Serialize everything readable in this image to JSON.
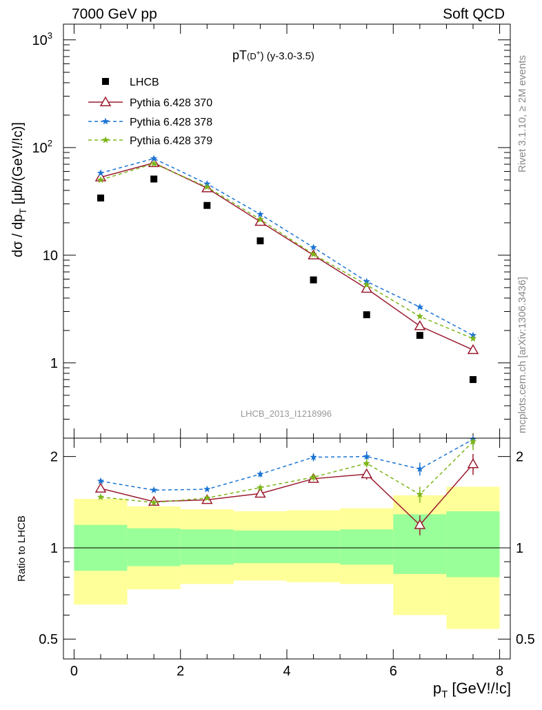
{
  "header": {
    "left": "7000 GeV pp",
    "right": "Soft QCD"
  },
  "side_labels": {
    "rivet": "Rivet 3.1.10, ≥ 2M events",
    "mcplots": "mcplots.cern.ch [arXiv:1306.3436]"
  },
  "chart_data": [
    {
      "type": "scatter",
      "title": "pT(D+) (y-3.0-3.5)",
      "title_main": "pT",
      "title_sub": "(D",
      "title_sup": "+",
      "title_tail": ") (y-3.0-3.5)",
      "ylabel": "dσ / dp_T [μb/(GeV!/!c)]",
      "ylabel_main": "dσ / dp",
      "ylabel_sub": "T",
      "ylabel_tail": " [μb/(GeV!/!c)]",
      "watermark": "LHCB_2013_I1218996",
      "yscale": "log",
      "ylim": [
        0.2,
        1400
      ],
      "xlim": [
        -0.2,
        8.2
      ],
      "yticks": [
        {
          "value": 1,
          "label": "1"
        },
        {
          "value": 10,
          "label": "10"
        },
        {
          "value": 100,
          "label": "10",
          "sup": "2"
        },
        {
          "value": 1000,
          "label": "10",
          "sup": "3"
        }
      ],
      "legend_position": "top-left",
      "x": [
        0.5,
        1.5,
        2.5,
        3.5,
        4.5,
        5.5,
        6.5,
        7.5
      ],
      "series": [
        {
          "name": "LHCB",
          "marker": "square",
          "color": "#000000",
          "values": [
            34,
            51,
            29,
            13.6,
            5.9,
            2.8,
            1.8,
            0.7
          ]
        },
        {
          "name": "Pythia 6.428 370",
          "marker": "triangle",
          "color": "#9b1b30",
          "line": "solid",
          "values": [
            53,
            72,
            42,
            20.5,
            10,
            4.9,
            2.2,
            1.32
          ]
        },
        {
          "name": "Pythia 6.428 378",
          "marker": "star",
          "color": "#1a73d4",
          "line": "dashed",
          "values": [
            58,
            79,
            46,
            24,
            11.8,
            5.7,
            3.3,
            1.8
          ]
        },
        {
          "name": "Pythia 6.428 379",
          "marker": "star",
          "color": "#7cb518",
          "line": "dashed",
          "values": [
            50,
            71,
            43,
            21.5,
            10.2,
            5.3,
            2.7,
            1.68
          ]
        }
      ]
    },
    {
      "type": "scatter",
      "ylabel": "Ratio to LHCB",
      "xlabel": "p_T [GeV!/!c]",
      "xlabel_main": "p",
      "xlabel_sub": "T",
      "xlabel_tail": " [GeV!/!c]",
      "yscale": "log",
      "ylim": [
        0.43,
        2.3
      ],
      "xlim": [
        -0.2,
        8.2
      ],
      "xticks": [
        0,
        2,
        4,
        6,
        8
      ],
      "yticks": [
        0.5,
        1,
        2
      ],
      "bin_edges": [
        0,
        1,
        2,
        3,
        4,
        5,
        6,
        7,
        8
      ],
      "band_inner": [
        [
          0.84,
          1.19
        ],
        [
          0.87,
          1.16
        ],
        [
          0.88,
          1.15
        ],
        [
          0.89,
          1.14
        ],
        [
          0.89,
          1.14
        ],
        [
          0.88,
          1.15
        ],
        [
          0.82,
          1.29
        ],
        [
          0.8,
          1.32
        ]
      ],
      "band_outer": [
        [
          0.65,
          1.45
        ],
        [
          0.73,
          1.37
        ],
        [
          0.76,
          1.34
        ],
        [
          0.78,
          1.32
        ],
        [
          0.77,
          1.33
        ],
        [
          0.76,
          1.35
        ],
        [
          0.6,
          1.49
        ],
        [
          0.54,
          1.59
        ]
      ],
      "x": [
        0.5,
        1.5,
        2.5,
        3.5,
        4.5,
        5.5,
        6.5,
        7.5
      ],
      "series": [
        {
          "name": "Pythia 6.428 370",
          "marker": "triangle",
          "color": "#9b1b30",
          "line": "solid",
          "values": [
            1.57,
            1.42,
            1.44,
            1.51,
            1.69,
            1.75,
            1.19,
            1.89
          ],
          "err": [
            0.02,
            0.02,
            0.02,
            0.03,
            0.05,
            0.07,
            0.09,
            0.15
          ]
        },
        {
          "name": "Pythia 6.428 378",
          "marker": "star",
          "color": "#1a73d4",
          "line": "dashed",
          "values": [
            1.66,
            1.55,
            1.56,
            1.75,
            1.99,
            2.0,
            1.82,
            2.28
          ],
          "err": [
            0.02,
            0.02,
            0.02,
            0.04,
            0.06,
            0.08,
            0.09,
            0.13
          ]
        },
        {
          "name": "Pythia 6.428 379",
          "marker": "star",
          "color": "#7cb518",
          "line": "dashed",
          "values": [
            1.47,
            1.41,
            1.46,
            1.58,
            1.71,
            1.9,
            1.5,
            2.24
          ],
          "err": [
            0.02,
            0.02,
            0.02,
            0.03,
            0.05,
            0.06,
            0.09,
            0.14
          ]
        }
      ]
    }
  ]
}
